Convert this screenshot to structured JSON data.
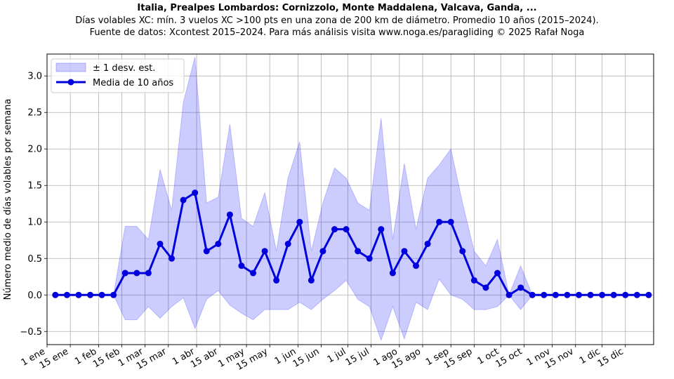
{
  "title": "Italia, Prealpes Lombardos: Cornizzolo, Monte Maddalena, Valcava, Ganda, ...",
  "subtitle1": "Días volables XC: mín. 3 vuelos XC >100 pts en una zona de 200 km de diámetro. Promedio 10 años (2015–2024).",
  "subtitle2": "Fuente de datos: Xcontest 2015–2024. Para más análisis visita www.noga.es/paragliding © 2025 Rafał Noga",
  "chart_data": {
    "type": "line",
    "ylabel": "Número medio de días volables por semana",
    "xlabel": "",
    "ylim": [
      -0.68,
      3.3
    ],
    "xlim": [
      1,
      366
    ],
    "y_ticks": [
      -0.5,
      0.0,
      0.5,
      1.0,
      1.5,
      2.0,
      2.5,
      3.0
    ],
    "y_tick_labels": [
      "−0.5",
      "0.0",
      "0.5",
      "1.0",
      "1.5",
      "2.0",
      "2.5",
      "3.0"
    ],
    "x_ticks": [
      1,
      15,
      32,
      46,
      60,
      74,
      91,
      105,
      121,
      135,
      152,
      166,
      182,
      196,
      213,
      227,
      244,
      258,
      274,
      288,
      305,
      319,
      335,
      349
    ],
    "x_tick_labels": [
      "1 ene",
      "15 ene",
      "1 feb",
      "15 feb",
      "1 mar",
      "15 mar",
      "1 abr",
      "15 abr",
      "1 may",
      "15 may",
      "1 jun",
      "15 jun",
      "1 jul",
      "15 jul",
      "1 ago",
      "15 ago",
      "1 sep",
      "15 sep",
      "1 oct",
      "15 oct",
      "1 nov",
      "15 nov",
      "1 dic",
      "15 dic"
    ],
    "grid": true,
    "legend_position": "top-left",
    "x": [
      6,
      13,
      20,
      27,
      34,
      41,
      48,
      55,
      62,
      69,
      76,
      83,
      90,
      97,
      104,
      111,
      118,
      125,
      132,
      139,
      146,
      153,
      160,
      167,
      174,
      181,
      188,
      195,
      202,
      209,
      216,
      223,
      230,
      237,
      244,
      251,
      258,
      265,
      272,
      279,
      286,
      293,
      300,
      307,
      314,
      321,
      328,
      335,
      342,
      349,
      356,
      363
    ],
    "series": [
      {
        "name": "Media de 10 años",
        "color": "#0000dd",
        "values": [
          0,
          0,
          0,
          0,
          0,
          0,
          0.3,
          0.3,
          0.3,
          0.7,
          0.5,
          1.3,
          1.4,
          0.6,
          0.7,
          1.1,
          0.4,
          0.3,
          0.6,
          0.2,
          0.7,
          1.0,
          0.2,
          0.6,
          0.9,
          0.9,
          0.6,
          0.5,
          0.9,
          0.3,
          0.6,
          0.4,
          0.7,
          1.0,
          1.0,
          0.6,
          0.2,
          0.1,
          0.3,
          0,
          0.1,
          0,
          0,
          0,
          0,
          0,
          0,
          0,
          0,
          0,
          0,
          0
        ]
      },
      {
        "name": "± 1 desv. est.",
        "color": "#0000ff",
        "upper": [
          0,
          0,
          0,
          0,
          0,
          0,
          0.94,
          0.94,
          0.76,
          1.72,
          1.16,
          2.64,
          3.26,
          1.26,
          1.34,
          2.34,
          1.05,
          0.94,
          1.4,
          0.6,
          1.6,
          2.1,
          0.6,
          1.26,
          1.74,
          1.6,
          1.26,
          1.16,
          2.42,
          0.76,
          1.8,
          0.9,
          1.6,
          1.78,
          2.0,
          1.26,
          0.6,
          0.4,
          0.76,
          0,
          0.4,
          0,
          0,
          0,
          0,
          0,
          0,
          0,
          0,
          0,
          0,
          0
        ],
        "lower": [
          0,
          0,
          0,
          0,
          0,
          0,
          -0.34,
          -0.34,
          -0.16,
          -0.32,
          -0.16,
          -0.04,
          -0.46,
          -0.06,
          0.06,
          -0.14,
          -0.25,
          -0.34,
          -0.2,
          -0.2,
          -0.2,
          -0.1,
          -0.2,
          -0.06,
          0.06,
          0.2,
          -0.06,
          -0.16,
          -0.62,
          -0.16,
          -0.6,
          -0.1,
          -0.2,
          0.22,
          0.0,
          -0.06,
          -0.2,
          -0.2,
          -0.16,
          0,
          -0.2,
          0,
          0,
          0,
          0,
          0,
          0,
          0,
          0,
          0,
          0,
          0
        ]
      }
    ]
  },
  "legend": {
    "band_label": "± 1 desv. est.",
    "line_label": "Media de 10 años"
  }
}
